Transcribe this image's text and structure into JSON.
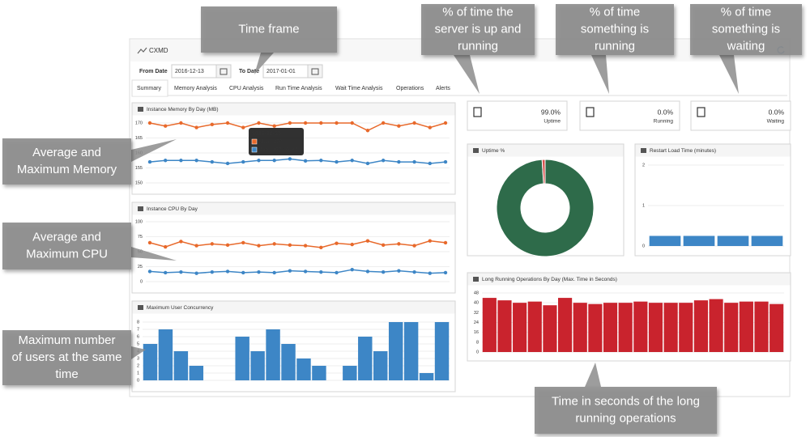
{
  "header": {
    "title": "CXMD"
  },
  "filters": {
    "from_label": "From Date",
    "from_value": "2016-12-13",
    "to_label": "To Date",
    "to_value": "2017-01-01"
  },
  "tabs": [
    "Summary",
    "Memory Analysis",
    "CPU Analysis",
    "Run Time Analysis",
    "Wait Time Analysis",
    "Operations",
    "Alerts"
  ],
  "stats": [
    {
      "value": "99.0%",
      "label": "Uptime"
    },
    {
      "value": "0.0%",
      "label": "Running"
    },
    {
      "value": "0.0%",
      "label": "Waiting"
    }
  ],
  "chart_data": [
    {
      "type": "line",
      "title": "Instance Memory By Day (MB)",
      "ylim": [
        150,
        170
      ],
      "yticks": [
        150,
        155,
        160,
        165,
        170
      ],
      "grid": true,
      "series": [
        {
          "color": "#e8692b",
          "values": [
            170,
            169,
            170,
            168.5,
            169.5,
            170,
            168.5,
            170,
            169,
            170,
            170,
            170,
            170,
            170,
            167.5,
            170,
            169,
            170,
            168.5,
            170
          ]
        },
        {
          "color": "#3d86c6",
          "values": [
            157,
            157.5,
            157.5,
            157.5,
            157,
            156.5,
            157,
            157.5,
            157.5,
            158,
            157.36082,
            157.5,
            157,
            157.5,
            156.5,
            157.5,
            157,
            157,
            156.5,
            157
          ]
        }
      ],
      "tooltip": {
        "title": "2016-12-23",
        "lines": [
          "Max : 170",
          "Avg : 157.36082"
        ]
      }
    },
    {
      "type": "line",
      "title": "Instance CPU By Day",
      "ylim": [
        0,
        100
      ],
      "yticks": [
        0,
        25,
        50,
        75,
        100
      ],
      "grid": true,
      "series": [
        {
          "color": "#e8692b",
          "values": [
            65,
            58,
            67,
            60,
            63,
            61,
            65,
            60,
            63,
            61,
            60,
            57,
            64,
            62,
            68,
            61,
            63,
            60,
            68,
            65
          ]
        },
        {
          "color": "#3d86c6",
          "values": [
            17,
            15,
            16,
            14,
            16,
            17,
            15,
            16,
            15,
            18,
            17,
            16,
            15,
            20,
            17,
            16,
            18,
            16,
            14,
            15
          ]
        }
      ]
    },
    {
      "type": "bar",
      "title": "Maximum User Concurrency",
      "ylim": [
        0,
        8
      ],
      "yticks": [
        0,
        1,
        2,
        3,
        4,
        5,
        6,
        7,
        8
      ],
      "grid": true,
      "color": "#3d86c6",
      "values": [
        5,
        7,
        4,
        2,
        0,
        0,
        6,
        4,
        7,
        5,
        3,
        2,
        0,
        2,
        6,
        4,
        8,
        8,
        1,
        8
      ]
    },
    {
      "type": "pie",
      "title": "Uptime %",
      "donut": true,
      "values": [
        99,
        1
      ],
      "colors": [
        "#2e6b4a",
        "#d9534f"
      ]
    },
    {
      "type": "bar",
      "title": "Restart Load Time (minutes)",
      "ylim": [
        0,
        2
      ],
      "yticks": [
        0,
        1,
        2
      ],
      "grid": true,
      "color": "#3d86c6",
      "values": [
        0.25,
        0.25,
        0.25,
        0.25
      ]
    },
    {
      "type": "bar",
      "title": "Long Running Operations By Day (Max. Time in Seconds)",
      "ylim": [
        0,
        48
      ],
      "yticks": [
        0,
        8,
        16,
        24,
        32,
        40,
        48
      ],
      "grid": true,
      "color": "#c9232d",
      "values": [
        44,
        42,
        40,
        41,
        38,
        44,
        40,
        39,
        40,
        40,
        41,
        40,
        40,
        40,
        42,
        43,
        40,
        41,
        41,
        39
      ]
    }
  ],
  "callouts": [
    {
      "lines": [
        "Time frame"
      ]
    },
    {
      "lines": [
        "% of time the",
        "server is up and",
        "running"
      ]
    },
    {
      "lines": [
        "% of time",
        "something is",
        "running"
      ]
    },
    {
      "lines": [
        "% of time",
        "something is",
        "waiting"
      ]
    },
    {
      "lines": [
        "Average and",
        "Maximum Memory"
      ]
    },
    {
      "lines": [
        "Average and",
        "Maximum CPU"
      ]
    },
    {
      "lines": [
        "Maximum number",
        "of users at the same",
        "time"
      ]
    },
    {
      "lines": [
        "Time in seconds of the long",
        "running  operations"
      ]
    }
  ]
}
